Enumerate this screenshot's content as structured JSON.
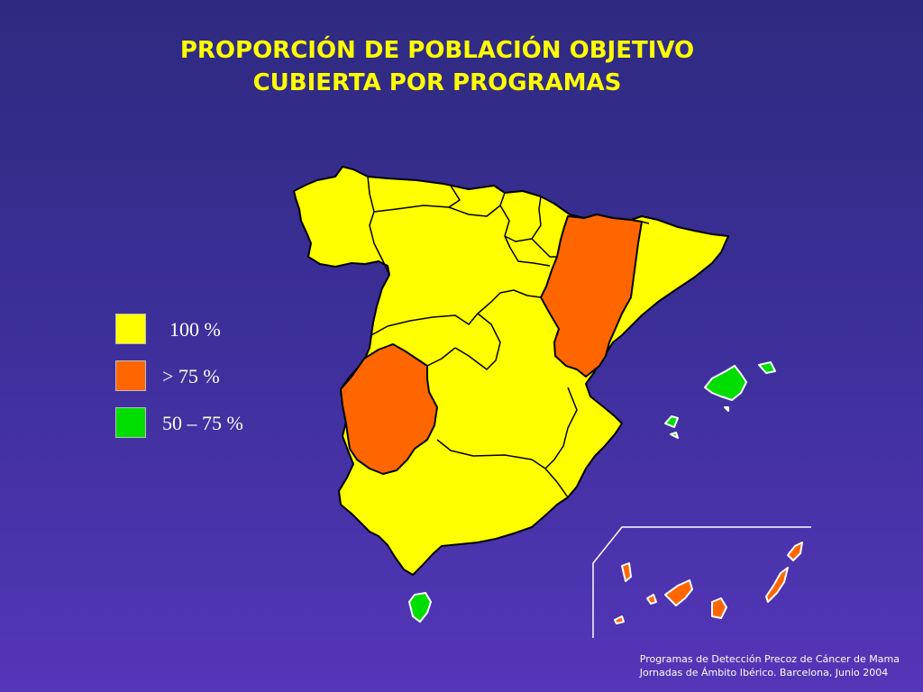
{
  "title": {
    "line1": "PROPORCIÓN DE POBLACIÓN OBJETIVO",
    "line2": "CUBIERTA POR PROGRAMAS"
  },
  "colors": {
    "full": "#ffff00",
    "over75": "#ff6600",
    "range50_75": "#00dd00",
    "border": "#000000",
    "background": "#3b2f98"
  },
  "legend": [
    {
      "label": "100 %",
      "color": "#ffff00"
    },
    {
      "label": "> 75 %",
      "color": "#ff6600"
    },
    {
      "label": "50 – 75 %",
      "color": "#00dd00"
    }
  ],
  "footer": {
    "line1": "Programas de Detección Precoz de Cáncer de Mama",
    "line2": "Jornadas de Ámbito Ibérico. Barcelona, Junio 2004"
  }
}
